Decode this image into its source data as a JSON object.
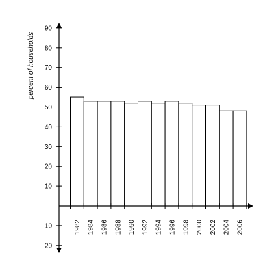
{
  "chart_data": {
    "type": "bar",
    "title": "",
    "xlabel": "",
    "ylabel": "percent of households",
    "categories": [
      "1982",
      "1984",
      "1986",
      "1988",
      "1990",
      "1992",
      "1994",
      "1996",
      "1998",
      "2000",
      "2002",
      "2004",
      "2006"
    ],
    "values": [
      55,
      53,
      53,
      53,
      52,
      53,
      52,
      53,
      52,
      51,
      51,
      48,
      48
    ],
    "y_ticks": [
      90,
      80,
      70,
      60,
      50,
      40,
      30,
      20,
      10,
      -10,
      -20
    ],
    "ylim": [
      -20,
      90
    ],
    "grid": false,
    "colors": {
      "bar_fill": "#ffffff",
      "bar_stroke": "#000000",
      "axis": "#000000"
    }
  }
}
